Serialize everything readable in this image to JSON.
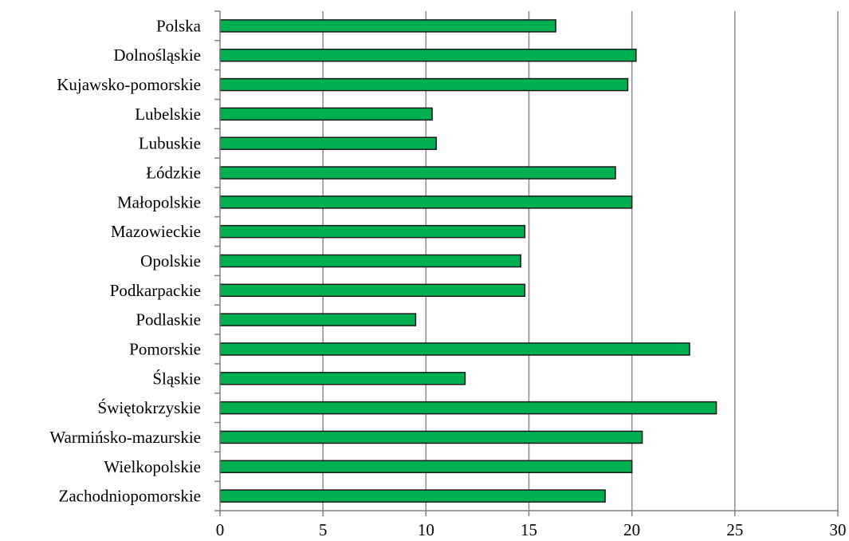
{
  "chart_data": {
    "type": "bar",
    "orientation": "horizontal",
    "title": "",
    "xlabel": "",
    "ylabel": "",
    "categories": [
      "Polska",
      "Dolnośląskie",
      "Kujawsko-pomorskie",
      "Lubelskie",
      "Lubuskie",
      "Łódzkie",
      "Małopolskie",
      "Mazowieckie",
      "Opolskie",
      "Podkarpackie",
      "Podlaskie",
      "Pomorskie",
      "Śląskie",
      "Świętokrzyskie",
      "Warmińsko-mazurskie",
      "Wielkopolskie",
      "Zachodniopomorskie"
    ],
    "values": [
      16.3,
      20.2,
      19.8,
      10.3,
      10.5,
      19.2,
      20.0,
      14.8,
      14.6,
      14.8,
      9.5,
      22.8,
      11.9,
      24.1,
      20.5,
      20.0,
      18.7
    ],
    "xlim": [
      0,
      30
    ],
    "xticks": [
      "0",
      "5",
      "10",
      "15",
      "20",
      "25",
      "30"
    ],
    "grid": "vertical",
    "legend": "none",
    "colors": {
      "bar_fill": "#00b050",
      "bar_stroke": "#1a1a1a",
      "grid": "#8c8c8c",
      "axis": "#808080",
      "text": "#000000"
    }
  }
}
